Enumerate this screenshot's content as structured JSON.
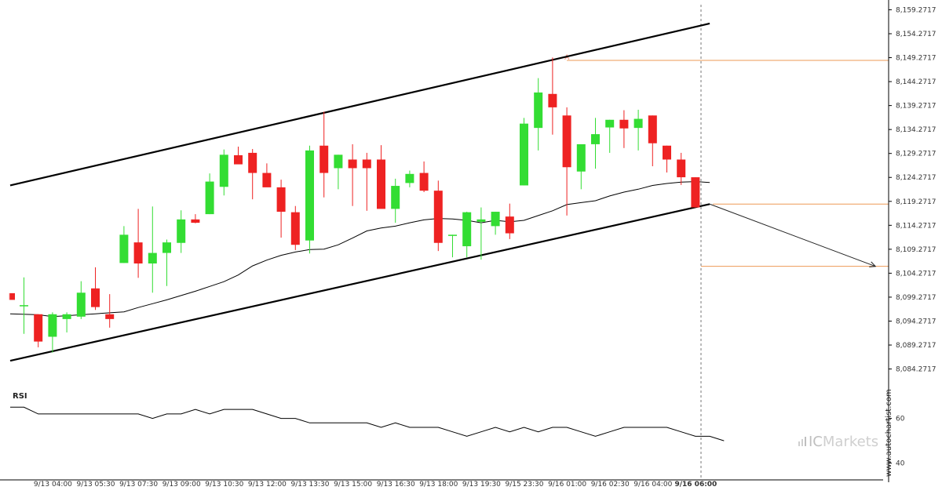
{
  "chart_data": {
    "type": "candlestick",
    "y_ticks": [
      "8,159.2717",
      "8,154.2717",
      "8,149.2717",
      "8,144.2717",
      "8,139.2717",
      "8,134.2717",
      "8,129.2717",
      "8,124.2717",
      "8,119.2717",
      "8,114.2717",
      "8,109.2717",
      "8,104.2717",
      "8,099.2717",
      "8,094.2717",
      "8,089.2717",
      "8,084.2717"
    ],
    "y_tick_values": [
      8159.2717,
      8154.2717,
      8149.2717,
      8144.2717,
      8139.2717,
      8134.2717,
      8129.2717,
      8124.2717,
      8119.2717,
      8114.2717,
      8109.2717,
      8104.2717,
      8099.2717,
      8094.2717,
      8089.2717,
      8084.2717
    ],
    "ylim": [
      8080.6,
      8160.0
    ],
    "x_labels": [
      "9/13 04:00",
      "9/13 05:30",
      "9/13 07:30",
      "9/13 09:00",
      "9/13 10:30",
      "9/13 12:00",
      "9/13 13:30",
      "9/13 15:00",
      "9/13 16:30",
      "9/13 18:00",
      "9/13 19:30",
      "9/15 23:30",
      "9/16 01:00",
      "9/16 02:30",
      "9/16 04:00",
      "9/16 06:00"
    ],
    "x_label_candle_index": [
      2,
      5,
      8,
      11,
      14,
      17,
      20,
      23,
      26,
      29,
      32,
      35,
      38,
      41,
      44,
      47
    ],
    "current_label": "9/16 06:00",
    "candles": [
      {
        "o": 8100.1,
        "h": 8100.1,
        "l": 8098.7,
        "c": 8098.7
      },
      {
        "o": 8097.6,
        "h": 8103.4,
        "l": 8091.6,
        "c": 8097.6
      },
      {
        "o": 8095.7,
        "h": 8095.7,
        "l": 8088.8,
        "c": 8090.0
      },
      {
        "o": 8091.0,
        "h": 8096.1,
        "l": 8087.7,
        "c": 8095.7
      },
      {
        "o": 8094.7,
        "h": 8096.1,
        "l": 8091.9,
        "c": 8095.7
      },
      {
        "o": 8095.2,
        "h": 8102.6,
        "l": 8094.7,
        "c": 8100.2
      },
      {
        "o": 8101.1,
        "h": 8105.5,
        "l": 8096.6,
        "c": 8097.2
      },
      {
        "o": 8095.7,
        "h": 8099.9,
        "l": 8092.9,
        "c": 8094.7
      },
      {
        "o": 8106.4,
        "h": 8114.1,
        "l": 8106.4,
        "c": 8112.3
      },
      {
        "o": 8110.7,
        "h": 8117.7,
        "l": 8103.3,
        "c": 8106.3
      },
      {
        "o": 8106.3,
        "h": 8118.2,
        "l": 8100.2,
        "c": 8108.5
      },
      {
        "o": 8108.5,
        "h": 8111.3,
        "l": 8101.6,
        "c": 8110.7
      },
      {
        "o": 8110.6,
        "h": 8117.4,
        "l": 8108.5,
        "c": 8115.5
      },
      {
        "o": 8115.5,
        "h": 8116.6,
        "l": 8114.7,
        "c": 8114.8
      },
      {
        "o": 8116.6,
        "h": 8125.1,
        "l": 8116.6,
        "c": 8123.4
      },
      {
        "o": 8122.3,
        "h": 8130.1,
        "l": 8120.5,
        "c": 8129.0
      },
      {
        "o": 8128.9,
        "h": 8130.7,
        "l": 8127.6,
        "c": 8127.0
      },
      {
        "o": 8129.4,
        "h": 8130.2,
        "l": 8119.7,
        "c": 8125.2
      },
      {
        "o": 8125.2,
        "h": 8127.2,
        "l": 8122.7,
        "c": 8122.2
      },
      {
        "o": 8122.2,
        "h": 8123.8,
        "l": 8111.7,
        "c": 8117.1
      },
      {
        "o": 8117.0,
        "h": 8118.3,
        "l": 8109.1,
        "c": 8110.2
      },
      {
        "o": 8111.1,
        "h": 8130.9,
        "l": 8108.4,
        "c": 8129.9
      },
      {
        "o": 8130.9,
        "h": 8138.0,
        "l": 8120.1,
        "c": 8125.2
      },
      {
        "o": 8126.2,
        "h": 8129.0,
        "l": 8121.8,
        "c": 8129.0
      },
      {
        "o": 8128.0,
        "h": 8131.2,
        "l": 8118.3,
        "c": 8126.2
      },
      {
        "o": 8128.0,
        "h": 8129.4,
        "l": 8117.3,
        "c": 8126.2
      },
      {
        "o": 8128.0,
        "h": 8131.0,
        "l": 8117.8,
        "c": 8117.7
      },
      {
        "o": 8117.7,
        "h": 8124.0,
        "l": 8114.8,
        "c": 8122.5
      },
      {
        "o": 8123.1,
        "h": 8125.7,
        "l": 8122.2,
        "c": 8125.0
      },
      {
        "o": 8125.2,
        "h": 8127.6,
        "l": 8121.2,
        "c": 8121.5
      },
      {
        "o": 8121.5,
        "h": 8123.6,
        "l": 8108.9,
        "c": 8110.6
      },
      {
        "o": 8112.3,
        "h": 8112.3,
        "l": 8107.6,
        "c": 8112.3
      },
      {
        "o": 8109.9,
        "h": 8117.1,
        "l": 8107.6,
        "c": 8117.0
      },
      {
        "o": 8115.0,
        "h": 8118.0,
        "l": 8107.1,
        "c": 8115.5
      },
      {
        "o": 8114.1,
        "h": 8117.1,
        "l": 8112.3,
        "c": 8117.1
      },
      {
        "o": 8116.1,
        "h": 8118.8,
        "l": 8111.4,
        "c": 8112.6
      },
      {
        "o": 8122.6,
        "h": 8136.7,
        "l": 8122.6,
        "c": 8135.5
      },
      {
        "o": 8134.6,
        "h": 8145.0,
        "l": 8129.9,
        "c": 8142.0
      },
      {
        "o": 8141.7,
        "h": 8149.3,
        "l": 8133.2,
        "c": 8138.9
      },
      {
        "o": 8137.2,
        "h": 8138.9,
        "l": 8116.3,
        "c": 8126.4
      },
      {
        "o": 8125.5,
        "h": 8130.9,
        "l": 8121.8,
        "c": 8131.2
      },
      {
        "o": 8131.2,
        "h": 8136.7,
        "l": 8126.1,
        "c": 8133.3
      },
      {
        "o": 8134.7,
        "h": 8136.3,
        "l": 8129.4,
        "c": 8136.3
      },
      {
        "o": 8136.3,
        "h": 8138.3,
        "l": 8130.4,
        "c": 8134.5
      },
      {
        "o": 8134.6,
        "h": 8138.4,
        "l": 8129.9,
        "c": 8136.5
      },
      {
        "o": 8137.2,
        "h": 8137.2,
        "l": 8126.6,
        "c": 8131.4
      },
      {
        "o": 8130.9,
        "h": 8130.9,
        "l": 8125.3,
        "c": 8128.0
      },
      {
        "o": 8128.0,
        "h": 8129.4,
        "l": 8122.7,
        "c": 8124.3
      },
      {
        "o": 8124.3,
        "h": 8124.3,
        "l": 8118.0,
        "c": 8118.0
      }
    ],
    "ma": [
      8095.8,
      8095.6,
      8095.2,
      8095.4,
      8095.6,
      8095.8,
      8096.0,
      8096.2,
      8097.1,
      8097.9,
      8098.7,
      8099.6,
      8100.5,
      8101.5,
      8102.5,
      8103.9,
      8105.8,
      8107.0,
      8108.0,
      8108.7,
      8109.2,
      8109.3,
      8110.2,
      8111.6,
      8113.1,
      8113.7,
      8114.1,
      8114.8,
      8115.4,
      8115.7,
      8115.6,
      8115.3,
      8114.8,
      8115.3,
      8115.0,
      8115.3,
      8116.3,
      8117.3,
      8118.6,
      8119.0,
      8119.4,
      8120.4,
      8121.2,
      8121.8,
      8122.6,
      8123.0,
      8123.3,
      8123.4,
      8123.2
    ],
    "channel_upper": [
      {
        "i": -1,
        "v": 8122.6
      },
      {
        "i": 48,
        "v": 8156.4
      }
    ],
    "channel_lower": [
      {
        "i": -1,
        "v": 8086.0
      },
      {
        "i": 48,
        "v": 8118.7
      }
    ],
    "level_a": 8148.7,
    "level_a_start": 38,
    "level_entry": 8118.7,
    "level_target": 8105.7,
    "projection": {
      "from_i": 48,
      "from_v": 8118.7,
      "to_i": 59.6,
      "to_v": 8105.7
    },
    "colors": {
      "up": "#33dd33",
      "down": "#ee2222",
      "channel": "#000000",
      "ma": "#000000",
      "levels": "#ee9955",
      "arrow": "#222222",
      "text": "#333333"
    }
  },
  "rsi": {
    "label": "RSI",
    "ticks": [
      "60",
      "40"
    ],
    "tick_values": [
      60,
      40
    ],
    "ylim": [
      35,
      70
    ],
    "values": [
      65,
      65,
      62,
      62,
      62,
      62,
      62,
      62,
      62,
      62,
      60,
      62,
      62,
      64,
      62,
      64,
      64,
      64,
      62,
      60,
      60,
      58,
      58,
      58,
      58,
      58,
      56,
      58,
      56,
      56,
      56,
      54,
      52,
      54,
      56,
      54,
      56,
      54,
      56,
      56,
      54,
      52,
      54,
      56,
      56,
      56,
      56,
      54,
      52,
      52,
      50
    ],
    "start_index": -1
  },
  "watermark": {
    "part1": "IC",
    "part2": "Markets"
  },
  "credit": "www.autochartist.com"
}
